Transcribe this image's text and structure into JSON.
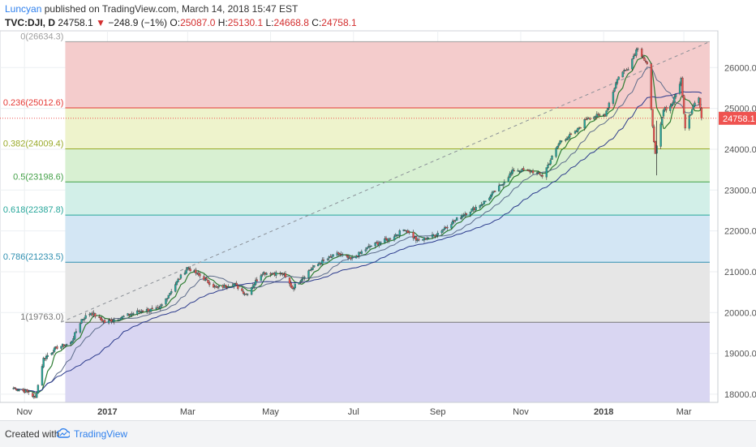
{
  "header": {
    "author": "Luncyan",
    "published_text": "published on TradingView.com, March 14, 2018 15:47 EST",
    "symbol": "TVC:DJI, D",
    "last": "24758.1",
    "change_arrow": "▼",
    "change": "−248.9 (−1%)",
    "open_label": "O:",
    "open": "25087.0",
    "high_label": "H:",
    "high": "25130.1",
    "low_label": "L:",
    "low": "24668.8",
    "close_label": "C:",
    "close": "24758.1"
  },
  "footer": {
    "created_with": "Created with",
    "brand": "TradingView"
  },
  "colors": {
    "up": "#26a69a",
    "down": "#ef5350",
    "ma_short": "#2e7d32",
    "ma_mid": "#5c6b8a",
    "ma_long": "#2b3a8c",
    "price_tag": "#ef5350"
  },
  "chart_data": {
    "type": "candlestick",
    "y_axis": {
      "ylim": [
        17800,
        26900
      ],
      "ticks": [
        18000,
        19000,
        20000,
        21000,
        22000,
        23000,
        24000,
        25000,
        26000
      ],
      "tick_labels": [
        "18000.0",
        "19000.0",
        "20000.0",
        "21000.0",
        "22000.0",
        "23000.0",
        "24000.0",
        "25000.0",
        "26000.0"
      ],
      "current_price_label": "24758.1",
      "current_price": 24758.1
    },
    "x_axis": {
      "labels": [
        "Nov",
        "2017",
        "Mar",
        "May",
        "Jul",
        "Sep",
        "Nov",
        "2018",
        "Mar"
      ],
      "bold_labels": [
        "2017",
        "2018"
      ]
    },
    "fibonacci_retracement": {
      "levels": [
        {
          "ratio": "0",
          "price": 26634.3,
          "label": "0(26634.3)",
          "line": "#9e9e9e",
          "fill": "#f4cccc"
        },
        {
          "ratio": "0.236",
          "price": 25012.6,
          "label": "0.236(25012.6)",
          "line": "#e53935",
          "fill": "#eef3cc"
        },
        {
          "ratio": "0.382",
          "price": 24009.4,
          "label": "0.382(24009.4)",
          "line": "#9aaa2a",
          "fill": "#d8f0d2"
        },
        {
          "ratio": "0.5",
          "price": 23198.6,
          "label": "0.5(23198.6)",
          "line": "#43a047",
          "fill": "#d2efe8"
        },
        {
          "ratio": "0.618",
          "price": 22387.8,
          "label": "0.618(22387.8)",
          "line": "#26a69a",
          "fill": "#d3e6f4"
        },
        {
          "ratio": "0.786",
          "price": 21233.5,
          "label": "0.786(21233.5)",
          "line": "#2f8fb0",
          "fill": "#e6e6e6"
        },
        {
          "ratio": "1",
          "price": 19763.0,
          "label": "1(19763.0)",
          "line": "#777777",
          "fill": "#d9d6f2"
        }
      ]
    },
    "trend_line": {
      "from_price": 19763.0,
      "to_price": 26634.3,
      "style": "dashed"
    },
    "price_path": {
      "dates": [
        "2016-10-24",
        "2016-11-04",
        "2016-11-09",
        "2016-11-15",
        "2016-11-25",
        "2016-12-05",
        "2016-12-13",
        "2016-12-20",
        "2016-12-30",
        "2017-01-12",
        "2017-01-26",
        "2017-02-08",
        "2017-02-22",
        "2017-03-01",
        "2017-03-10",
        "2017-03-22",
        "2017-04-04",
        "2017-04-13",
        "2017-04-25",
        "2017-05-10",
        "2017-05-17",
        "2017-05-30",
        "2017-06-09",
        "2017-06-20",
        "2017-06-29",
        "2017-07-14",
        "2017-07-27",
        "2017-08-08",
        "2017-08-17",
        "2017-08-30",
        "2017-09-11",
        "2017-09-20",
        "2017-10-05",
        "2017-10-17",
        "2017-10-27",
        "2017-11-10",
        "2017-11-17",
        "2017-11-30",
        "2017-12-11",
        "2017-12-20",
        "2018-01-02",
        "2018-01-12",
        "2018-01-19",
        "2018-01-26",
        "2018-02-02",
        "2018-02-08",
        "2018-02-14",
        "2018-02-20",
        "2018-02-27",
        "2018-03-02",
        "2018-03-08",
        "2018-03-12",
        "2018-03-14"
      ],
      "close": [
        18150,
        18050,
        17900,
        18870,
        19150,
        19250,
        19830,
        20000,
        19760,
        19890,
        20050,
        20080,
        20800,
        21100,
        20900,
        20600,
        20700,
        20450,
        20980,
        20950,
        20600,
        21050,
        21270,
        21440,
        21300,
        21640,
        21800,
        22050,
        21750,
        21900,
        22200,
        22400,
        22700,
        23100,
        23500,
        23450,
        23350,
        24200,
        24400,
        24780,
        24850,
        25800,
        26000,
        26500,
        26050,
        23860,
        24950,
        25100,
        25700,
        24500,
        25100,
        25300,
        24758.1
      ]
    },
    "moving_averages": [
      {
        "name": "",
        "values_note": "short"
      },
      {
        "name": "",
        "values_note": "mid"
      },
      {
        "name": "",
        "values_note": "long"
      }
    ]
  }
}
